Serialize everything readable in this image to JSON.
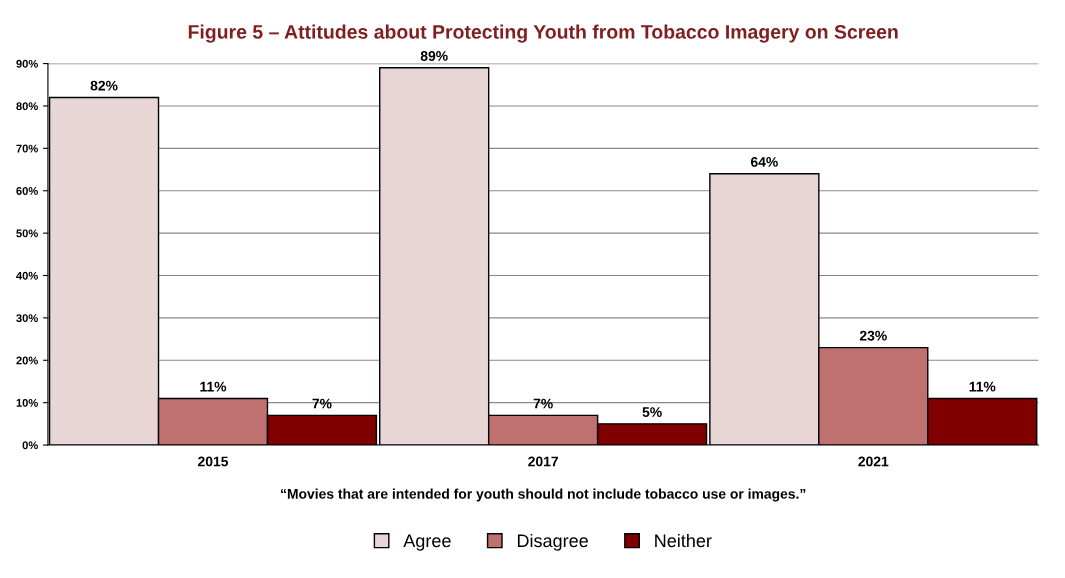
{
  "chart_data": {
    "type": "bar",
    "title": "Figure 5 – Attitudes about Protecting Youth from Tobacco Imagery on Screen",
    "xlabel": "“Movies that are intended for youth should not include tobacco use or images.”",
    "categories": [
      "2015",
      "2017",
      "2021"
    ],
    "series": [
      {
        "name": "Agree",
        "color": "#e8d6d7",
        "values": [
          82,
          89,
          64
        ],
        "value_labels": [
          "82%",
          "89%",
          "64%"
        ]
      },
      {
        "name": "Disagree",
        "color": "#bf716f",
        "values": [
          11,
          7,
          23
        ],
        "value_labels": [
          "11%",
          "7%",
          "23%"
        ]
      },
      {
        "name": "Neither",
        "color": "#800000",
        "values": [
          7,
          5,
          11
        ],
        "value_labels": [
          "7%",
          "5%",
          "11%"
        ]
      }
    ],
    "ylim": [
      0,
      90
    ],
    "yticks": [
      {
        "value": 0,
        "label": "0%"
      },
      {
        "value": 10,
        "label": "10%"
      },
      {
        "value": 20,
        "label": "20%"
      },
      {
        "value": 30,
        "label": "30%"
      },
      {
        "value": 40,
        "label": "40%"
      },
      {
        "value": 50,
        "label": "50%"
      },
      {
        "value": 60,
        "label": "60%"
      },
      {
        "value": 70,
        "label": "70%"
      },
      {
        "value": 80,
        "label": "80%"
      },
      {
        "value": 90,
        "label": "90%"
      }
    ],
    "grid": "y",
    "legend": "bottom"
  }
}
